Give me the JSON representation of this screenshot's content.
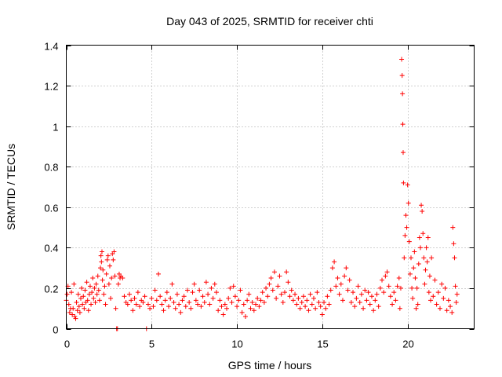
{
  "chart_data": {
    "type": "scatter",
    "title": "Day 043 of 2025, SRMTID for receiver chti",
    "xlabel": "GPS time / hours",
    "ylabel": "SRMTID / TECUs",
    "xlim": [
      0,
      23.9
    ],
    "ylim": [
      0,
      1.4
    ],
    "xticks": [
      0,
      5,
      10,
      15,
      20
    ],
    "xtick_labels": [
      "0",
      "5",
      "10",
      "15",
      "20"
    ],
    "yticks": [
      0,
      0.2,
      0.4,
      0.6,
      0.8,
      1,
      1.2,
      1.4
    ],
    "ytick_labels": [
      "0",
      "0.2",
      "0.4",
      "0.6",
      "0.8",
      "1",
      "1.2",
      "1.4"
    ],
    "grid": true,
    "marker": "+",
    "color": "#ff0000",
    "series": [
      {
        "name": "SRMTID",
        "points": [
          [
            0.0,
            0.14
          ],
          [
            0.05,
            0.17
          ],
          [
            0.1,
            0.21
          ],
          [
            0.15,
            0.12
          ],
          [
            0.2,
            0.08
          ],
          [
            0.25,
            0.1
          ],
          [
            0.3,
            0.18
          ],
          [
            0.35,
            0.07
          ],
          [
            0.4,
            0.1
          ],
          [
            0.45,
            0.22
          ],
          [
            0.5,
            0.06
          ],
          [
            0.55,
            0.05
          ],
          [
            0.6,
            0.13
          ],
          [
            0.65,
            0.09
          ],
          [
            0.7,
            0.17
          ],
          [
            0.75,
            0.11
          ],
          [
            0.8,
            0.08
          ],
          [
            0.85,
            0.15
          ],
          [
            0.9,
            0.2
          ],
          [
            0.95,
            0.12
          ],
          [
            1.0,
            0.16
          ],
          [
            1.05,
            0.1
          ],
          [
            1.1,
            0.19
          ],
          [
            1.15,
            0.13
          ],
          [
            1.2,
            0.23
          ],
          [
            1.25,
            0.14
          ],
          [
            1.3,
            0.09
          ],
          [
            1.35,
            0.17
          ],
          [
            1.4,
            0.21
          ],
          [
            1.45,
            0.12
          ],
          [
            1.5,
            0.18
          ],
          [
            1.55,
            0.25
          ],
          [
            1.6,
            0.15
          ],
          [
            1.65,
            0.2
          ],
          [
            1.7,
            0.13
          ],
          [
            1.75,
            0.22
          ],
          [
            1.8,
            0.17
          ],
          [
            1.85,
            0.26
          ],
          [
            1.9,
            0.19
          ],
          [
            1.95,
            0.14
          ],
          [
            2.0,
            0.3
          ],
          [
            2.03,
            0.36
          ],
          [
            2.06,
            0.33
          ],
          [
            2.09,
            0.38
          ],
          [
            2.12,
            0.24
          ],
          [
            2.15,
            0.29
          ],
          [
            2.2,
            0.17
          ],
          [
            2.25,
            0.21
          ],
          [
            2.3,
            0.12
          ],
          [
            2.35,
            0.27
          ],
          [
            2.4,
            0.34
          ],
          [
            2.45,
            0.36
          ],
          [
            2.5,
            0.22
          ],
          [
            2.55,
            0.31
          ],
          [
            2.6,
            0.15
          ],
          [
            2.65,
            0.25
          ],
          [
            2.7,
            0.37
          ],
          [
            2.75,
            0.34
          ],
          [
            2.8,
            0.38
          ],
          [
            2.85,
            0.26
          ],
          [
            2.9,
            0.1
          ],
          [
            2.95,
            0.0
          ],
          [
            3.0,
            0.0
          ],
          [
            3.05,
            0.22
          ],
          [
            3.1,
            0.27
          ],
          [
            3.15,
            0.25
          ],
          [
            3.2,
            0.26
          ],
          [
            3.3,
            0.25
          ],
          [
            3.4,
            0.16
          ],
          [
            3.5,
            0.13
          ],
          [
            3.6,
            0.12
          ],
          [
            3.7,
            0.17
          ],
          [
            3.8,
            0.14
          ],
          [
            3.9,
            0.09
          ],
          [
            4.0,
            0.15
          ],
          [
            4.1,
            0.12
          ],
          [
            4.2,
            0.18
          ],
          [
            4.3,
            0.11
          ],
          [
            4.4,
            0.14
          ],
          [
            4.5,
            0.13
          ],
          [
            4.6,
            0.16
          ],
          [
            4.7,
            0.0
          ],
          [
            4.8,
            0.12
          ],
          [
            4.9,
            0.1
          ],
          [
            5.0,
            0.15
          ],
          [
            5.1,
            0.11
          ],
          [
            5.2,
            0.19
          ],
          [
            5.3,
            0.14
          ],
          [
            5.4,
            0.27
          ],
          [
            5.5,
            0.16
          ],
          [
            5.6,
            0.12
          ],
          [
            5.7,
            0.09
          ],
          [
            5.8,
            0.14
          ],
          [
            5.9,
            0.18
          ],
          [
            6.0,
            0.11
          ],
          [
            6.1,
            0.15
          ],
          [
            6.2,
            0.22
          ],
          [
            6.3,
            0.13
          ],
          [
            6.4,
            0.1
          ],
          [
            6.5,
            0.17
          ],
          [
            6.6,
            0.12
          ],
          [
            6.7,
            0.08
          ],
          [
            6.8,
            0.14
          ],
          [
            6.9,
            0.16
          ],
          [
            7.0,
            0.11
          ],
          [
            7.1,
            0.19
          ],
          [
            7.2,
            0.13
          ],
          [
            7.3,
            0.1
          ],
          [
            7.4,
            0.18
          ],
          [
            7.5,
            0.22
          ],
          [
            7.6,
            0.14
          ],
          [
            7.7,
            0.12
          ],
          [
            7.8,
            0.19
          ],
          [
            7.9,
            0.11
          ],
          [
            8.0,
            0.16
          ],
          [
            8.1,
            0.13
          ],
          [
            8.2,
            0.23
          ],
          [
            8.3,
            0.17
          ],
          [
            8.4,
            0.12
          ],
          [
            8.5,
            0.2
          ],
          [
            8.6,
            0.15
          ],
          [
            8.7,
            0.22
          ],
          [
            8.8,
            0.18
          ],
          [
            8.9,
            0.09
          ],
          [
            9.0,
            0.14
          ],
          [
            9.1,
            0.11
          ],
          [
            9.2,
            0.07
          ],
          [
            9.3,
            0.12
          ],
          [
            9.4,
            0.1
          ],
          [
            9.5,
            0.15
          ],
          [
            9.6,
            0.2
          ],
          [
            9.7,
            0.13
          ],
          [
            9.8,
            0.21
          ],
          [
            9.9,
            0.16
          ],
          [
            10.0,
            0.11
          ],
          [
            10.1,
            0.14
          ],
          [
            10.2,
            0.19
          ],
          [
            10.3,
            0.08
          ],
          [
            10.4,
            0.12
          ],
          [
            10.5,
            0.06
          ],
          [
            10.6,
            0.14
          ],
          [
            10.7,
            0.17
          ],
          [
            10.8,
            0.1
          ],
          [
            10.9,
            0.13
          ],
          [
            11.0,
            0.09
          ],
          [
            11.1,
            0.12
          ],
          [
            11.2,
            0.15
          ],
          [
            11.3,
            0.11
          ],
          [
            11.4,
            0.14
          ],
          [
            11.5,
            0.18
          ],
          [
            11.6,
            0.13
          ],
          [
            11.7,
            0.2
          ],
          [
            11.8,
            0.16
          ],
          [
            11.9,
            0.22
          ],
          [
            12.0,
            0.25
          ],
          [
            12.1,
            0.19
          ],
          [
            12.2,
            0.28
          ],
          [
            12.3,
            0.15
          ],
          [
            12.4,
            0.21
          ],
          [
            12.5,
            0.26
          ],
          [
            12.6,
            0.17
          ],
          [
            12.7,
            0.13
          ],
          [
            12.8,
            0.18
          ],
          [
            12.9,
            0.28
          ],
          [
            13.0,
            0.23
          ],
          [
            13.1,
            0.16
          ],
          [
            13.2,
            0.19
          ],
          [
            13.3,
            0.14
          ],
          [
            13.4,
            0.17
          ],
          [
            13.5,
            0.12
          ],
          [
            13.6,
            0.15
          ],
          [
            13.7,
            0.1
          ],
          [
            13.8,
            0.13
          ],
          [
            13.9,
            0.16
          ],
          [
            14.0,
            0.11
          ],
          [
            14.1,
            0.14
          ],
          [
            14.2,
            0.09
          ],
          [
            14.3,
            0.17
          ],
          [
            14.4,
            0.12
          ],
          [
            14.5,
            0.15
          ],
          [
            14.6,
            0.1
          ],
          [
            14.7,
            0.18
          ],
          [
            14.8,
            0.13
          ],
          [
            14.9,
            0.11
          ],
          [
            15.0,
            0.07
          ],
          [
            15.1,
            0.13
          ],
          [
            15.2,
            0.1
          ],
          [
            15.3,
            0.16
          ],
          [
            15.4,
            0.12
          ],
          [
            15.5,
            0.19
          ],
          [
            15.6,
            0.3
          ],
          [
            15.7,
            0.33
          ],
          [
            15.8,
            0.21
          ],
          [
            15.9,
            0.25
          ],
          [
            16.0,
            0.17
          ],
          [
            16.1,
            0.22
          ],
          [
            16.2,
            0.14
          ],
          [
            16.3,
            0.26
          ],
          [
            16.4,
            0.3
          ],
          [
            16.5,
            0.19
          ],
          [
            16.6,
            0.24
          ],
          [
            16.7,
            0.13
          ],
          [
            16.8,
            0.18
          ],
          [
            16.9,
            0.11
          ],
          [
            17.0,
            0.15
          ],
          [
            17.1,
            0.21
          ],
          [
            17.2,
            0.13
          ],
          [
            17.3,
            0.17
          ],
          [
            17.4,
            0.1
          ],
          [
            17.5,
            0.19
          ],
          [
            17.6,
            0.14
          ],
          [
            17.7,
            0.18
          ],
          [
            17.8,
            0.12
          ],
          [
            17.9,
            0.16
          ],
          [
            18.0,
            0.09
          ],
          [
            18.1,
            0.14
          ],
          [
            18.2,
            0.17
          ],
          [
            18.3,
            0.11
          ],
          [
            18.4,
            0.2
          ],
          [
            18.5,
            0.24
          ],
          [
            18.6,
            0.18
          ],
          [
            18.7,
            0.26
          ],
          [
            18.8,
            0.28
          ],
          [
            18.9,
            0.21
          ],
          [
            19.0,
            0.16
          ],
          [
            19.1,
            0.12
          ],
          [
            19.2,
            0.18
          ],
          [
            19.3,
            0.14
          ],
          [
            19.4,
            0.21
          ],
          [
            19.5,
            0.25
          ],
          [
            19.55,
            0.1
          ],
          [
            19.6,
            0.2
          ],
          [
            19.65,
            1.33
          ],
          [
            19.68,
            1.25
          ],
          [
            19.7,
            1.16
          ],
          [
            19.72,
            1.01
          ],
          [
            19.74,
            0.87
          ],
          [
            19.76,
            0.72
          ],
          [
            19.8,
            0.35
          ],
          [
            19.85,
            0.46
          ],
          [
            19.9,
            0.56
          ],
          [
            19.95,
            0.5
          ],
          [
            20.0,
            0.71
          ],
          [
            20.05,
            0.62
          ],
          [
            20.1,
            0.43
          ],
          [
            20.15,
            0.27
          ],
          [
            20.2,
            0.35
          ],
          [
            20.25,
            0.2
          ],
          [
            20.3,
            0.15
          ],
          [
            20.35,
            0.3
          ],
          [
            20.4,
            0.38
          ],
          [
            20.45,
            0.25
          ],
          [
            20.5,
            0.1
          ],
          [
            20.55,
            0.2
          ],
          [
            20.6,
            0.12
          ],
          [
            20.65,
            0.32
          ],
          [
            20.7,
            0.45
          ],
          [
            20.75,
            0.4
          ],
          [
            20.8,
            0.61
          ],
          [
            20.85,
            0.58
          ],
          [
            20.9,
            0.47
          ],
          [
            20.95,
            0.35
          ],
          [
            21.0,
            0.22
          ],
          [
            21.05,
            0.29
          ],
          [
            21.1,
            0.4
          ],
          [
            21.15,
            0.33
          ],
          [
            21.2,
            0.45
          ],
          [
            21.25,
            0.18
          ],
          [
            21.3,
            0.26
          ],
          [
            21.35,
            0.14
          ],
          [
            21.4,
            0.35
          ],
          [
            21.5,
            0.16
          ],
          [
            21.6,
            0.24
          ],
          [
            21.7,
            0.12
          ],
          [
            21.8,
            0.18
          ],
          [
            21.9,
            0.1
          ],
          [
            22.0,
            0.22
          ],
          [
            22.1,
            0.15
          ],
          [
            22.2,
            0.2
          ],
          [
            22.3,
            0.09
          ],
          [
            22.4,
            0.14
          ],
          [
            22.5,
            0.11
          ],
          [
            22.6,
            0.08
          ],
          [
            22.65,
            0.5
          ],
          [
            22.7,
            0.42
          ],
          [
            22.75,
            0.35
          ],
          [
            22.8,
            0.21
          ],
          [
            22.85,
            0.13
          ],
          [
            22.9,
            0.17
          ]
        ]
      }
    ]
  }
}
